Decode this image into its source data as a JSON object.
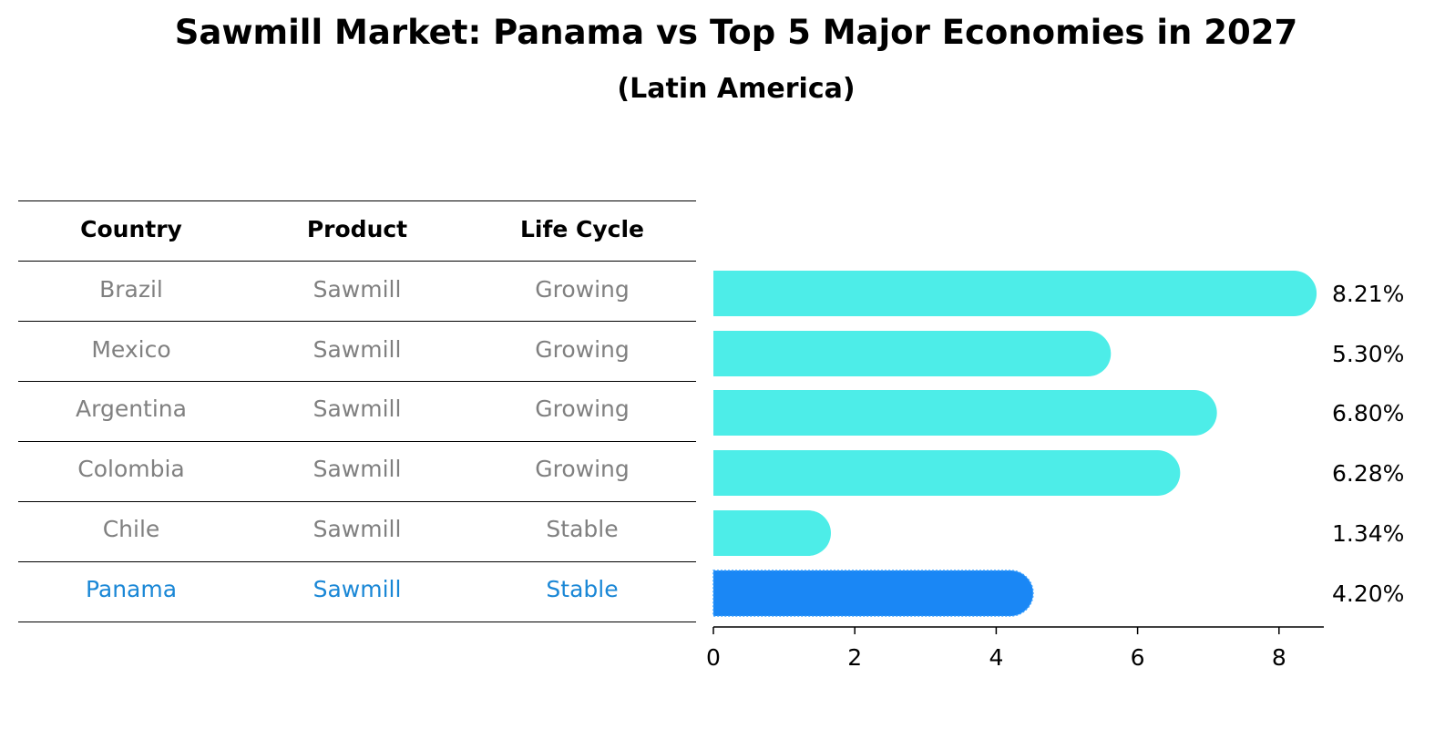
{
  "chart_data": {
    "type": "bar",
    "orientation": "horizontal",
    "title": "Sawmill Market: Panama vs Top 5 Major Economies in 2027",
    "subtitle": "(Latin America)",
    "categories": [
      "Brazil",
      "Mexico",
      "Argentina",
      "Colombia",
      "Chile",
      "Panama"
    ],
    "values": [
      8.21,
      5.3,
      6.8,
      6.28,
      1.34,
      4.2
    ],
    "value_labels": [
      "8.21%",
      "5.30%",
      "6.80%",
      "6.28%",
      "1.34%",
      "4.20%"
    ],
    "xlim": [
      0,
      8.6
    ],
    "xticks": [
      "0",
      "2",
      "4",
      "6",
      "8"
    ],
    "highlight": "Panama",
    "colors": {
      "bar": "#4dede8",
      "highlight": "#1a87f5",
      "muted_text": "#808080",
      "highlight_text": "#1a87d6"
    }
  },
  "table": {
    "headers": [
      "Country",
      "Product",
      "Life Cycle"
    ],
    "rows": [
      [
        "Brazil",
        "Sawmill",
        "Growing"
      ],
      [
        "Mexico",
        "Sawmill",
        "Growing"
      ],
      [
        "Argentina",
        "Sawmill",
        "Growing"
      ],
      [
        "Colombia",
        "Sawmill",
        "Growing"
      ],
      [
        "Chile",
        "Sawmill",
        "Stable"
      ],
      [
        "Panama",
        "Sawmill",
        "Stable"
      ]
    ]
  }
}
